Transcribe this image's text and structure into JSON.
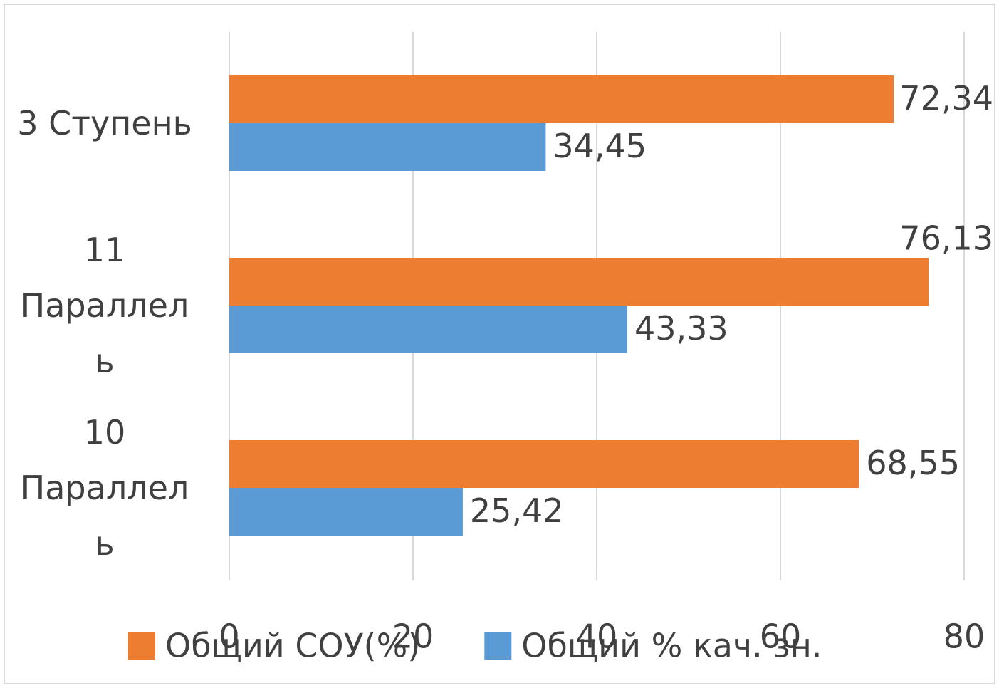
{
  "chart_data": {
    "type": "bar",
    "orientation": "horizontal",
    "categories": [
      "3 Ступень",
      "11 Параллель",
      "10 Параллель"
    ],
    "series": [
      {
        "name": "Общий СОУ(%)",
        "color": "#ed7d31",
        "values": [
          72.34,
          76.13,
          68.55
        ],
        "value_labels": [
          "72,34",
          "76,13",
          "68,55"
        ]
      },
      {
        "name": "Общий % кач. зн.",
        "color": "#5b9bd5",
        "values": [
          34.45,
          43.33,
          25.42
        ],
        "value_labels": [
          "34,45",
          "43,33",
          "25,42"
        ]
      }
    ],
    "xlim": [
      0,
      80
    ],
    "xticks": [
      0,
      20,
      40,
      60,
      80
    ],
    "grid": true,
    "legend": "bottom"
  }
}
